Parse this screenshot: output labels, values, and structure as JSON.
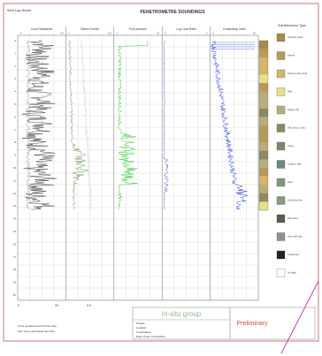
{
  "header": {
    "corner_note": "Well Log Sheet",
    "title": "PENETROMETRE SOUNDINGS"
  },
  "tracks": [
    {
      "name": "Cone Resistance",
      "color": "#333333",
      "scale_min": "0",
      "scale_max": "20"
    },
    {
      "name": "Sleeve Friction",
      "color": "#4a7a3a",
      "scale_min": "0",
      "scale_max": "0.5"
    },
    {
      "name": "Pore pressure",
      "color": "#22cc22",
      "scale_min": "0",
      "scale_max": "10"
    },
    {
      "name": "Log Cone Ratio",
      "color": "#3333aa",
      "scale_min": "0",
      "scale_max": "5"
    },
    {
      "name": "Conductivity Index",
      "color": "#2233ee",
      "scale_min": "0",
      "scale_max": "25"
    }
  ],
  "legend": {
    "title": "Soil Behaviour Type",
    "items": [
      {
        "label": "Gravelly sand",
        "color": "#a88a4a"
      },
      {
        "label": "Sands",
        "color": "#b89a58"
      },
      {
        "label": "Sand to silty sand",
        "color": "#d7b36c"
      },
      {
        "label": "Silts",
        "color": "#e6e08a"
      },
      {
        "label": "Clayey silt",
        "color": "#b9ae7a"
      },
      {
        "label": "Silty clay to clay",
        "color": "#8c8a62"
      },
      {
        "label": "Clays",
        "color": "#7f8670"
      },
      {
        "label": "Organic clay",
        "color": "#6f8a7c"
      },
      {
        "label": "Peat",
        "color": "#7c9a78"
      },
      {
        "label": "Sensitive fine",
        "color": "#8a9a80"
      },
      {
        "label": "Stiff sand",
        "color": "#60584a"
      },
      {
        "label": "Very stiff clay",
        "color": "#8e8e98"
      },
      {
        "label": "Undefined",
        "color": "#222222"
      },
      {
        "label": "No data",
        "color": "#ffffff"
      }
    ]
  },
  "footer": {
    "note_line1": "Cone resistance and friction ratio",
    "note_line2": "from cone penetration test data",
    "bottom_scale_left": "0",
    "bottom_scale_right": "20",
    "bottom_scale_mid": "0.5",
    "company": "In-situ group",
    "info_lines": [
      "Project:",
      "Location:",
      "Coordinates:",
      "Date of test: 12-06-2012"
    ],
    "stamp": "Preliminary"
  },
  "depth_axis": {
    "min": 0,
    "max": 20,
    "ticks": [
      "0",
      "1",
      "2",
      "3",
      "4",
      "5",
      "6",
      "7",
      "8",
      "9",
      "10",
      "11",
      "12",
      "13",
      "14",
      "15",
      "16",
      "17",
      "18",
      "19",
      "20"
    ]
  },
  "colors": {
    "frame": "#d07070",
    "grid": "#c8c8c8",
    "annotation_line": "#c040c0",
    "stamp": "#e04040",
    "company": "#88bb88"
  }
}
